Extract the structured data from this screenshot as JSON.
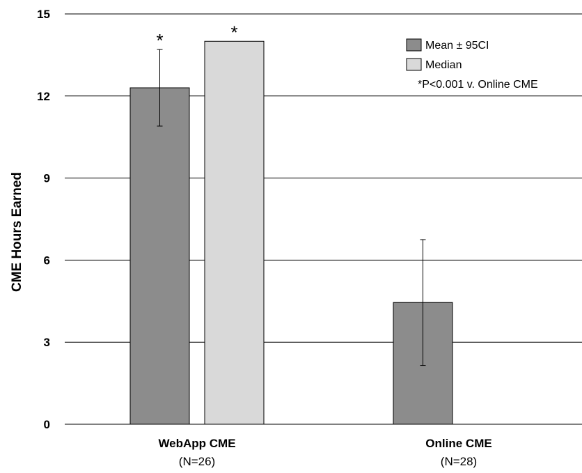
{
  "chart_data": {
    "type": "bar",
    "ylabel": "CME Hours Earned",
    "ylim": [
      0,
      15
    ],
    "yticks": [
      0,
      3,
      6,
      9,
      12,
      15
    ],
    "grid": true,
    "legend_position": "top-right",
    "groups": [
      {
        "label": "WebApp CME",
        "sublabel": "(N=26)"
      },
      {
        "label": "Online CME",
        "sublabel": "(N=28)"
      }
    ],
    "series": [
      {
        "name": "Mean ± 95CI",
        "color": "#8c8c8c",
        "values": [
          12.3,
          4.45
        ],
        "error_low": [
          10.9,
          2.15
        ],
        "error_high": [
          13.7,
          6.75
        ]
      },
      {
        "name": "Median",
        "color": "#d9d9d9",
        "values": [
          14.0,
          null
        ]
      }
    ],
    "annotations": {
      "significance_marks": [
        {
          "group": 0,
          "series": 0,
          "text": "*"
        },
        {
          "group": 0,
          "series": 1,
          "text": "*"
        }
      ],
      "footnote": "*P<0.001 v. Online CME"
    }
  }
}
